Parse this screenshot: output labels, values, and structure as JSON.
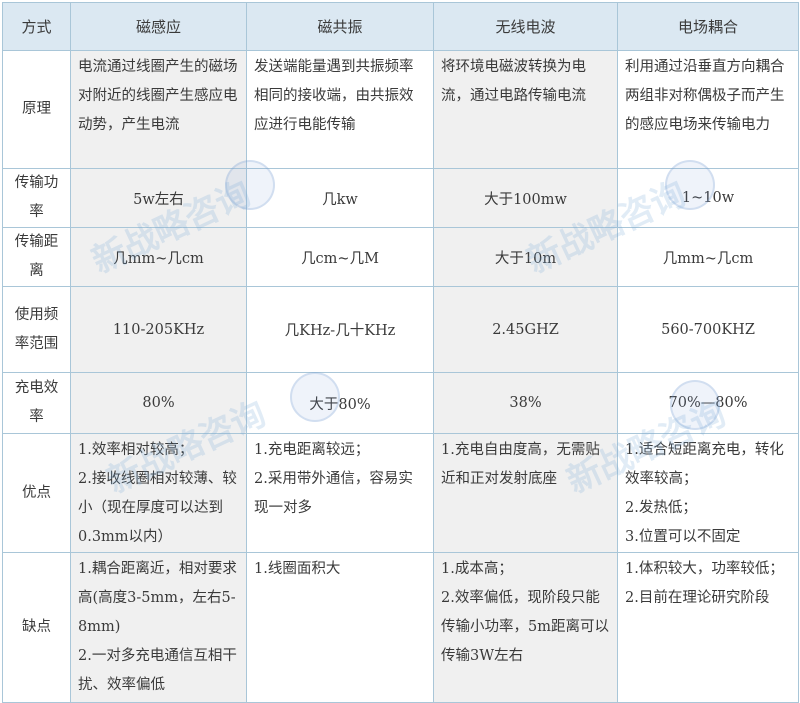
{
  "headers": [
    "方式",
    "磁感应",
    "磁共振",
    "无线电波",
    "电场耦合"
  ],
  "rows": [
    {
      "label": "原理",
      "cells": [
        "电流通过线圈产生的磁场对附近的线圈产生感应电动势，产生电流",
        "发送端能量遇到共振频率相同的接收端，由共振效应进行电能传输",
        "将环境电磁波转换为电流，通过电路传输电流",
        "利用通过沿垂直方向耦合两组非对称偶极子而产生的感应电场来传输电力"
      ]
    },
    {
      "label": "传输功率",
      "cells": [
        "5w左右",
        "几kw",
        "大于100mw",
        "1~10w"
      ]
    },
    {
      "label": "传输距离",
      "cells": [
        "几mm~几cm",
        "几cm~几M",
        "大于10m",
        "几mm~几cm"
      ]
    },
    {
      "label": "使用频率范围",
      "cells": [
        "110-205KHz",
        "几KHz-几十KHz",
        "2.45GHZ",
        "560-700KHZ"
      ]
    },
    {
      "label": "充电效率",
      "cells": [
        "80%",
        "大于80%",
        "38%",
        "70%—80%"
      ]
    },
    {
      "label": "优点",
      "cells": [
        "1.效率相对较高；\n2.接收线圈相对较薄、较小（现在厚度可以达到0.3mm以内）",
        "1.充电距离较远；\n2.采用带外通信，容易实现一对多",
        "1.充电自由度高，无需贴近和正对发射底座",
        "1.适合短距离充电，转化效率较高；\n2.发热低；\n3.位置可以不固定"
      ]
    },
    {
      "label": "缺点",
      "cells": [
        "1.耦合距离近，相对要求高(高度3-5mm，左右5-8mm)\n2.一对多充电通信互相干扰、效率偏低",
        "1.线圈面积大",
        "1.成本高；\n2.效率偏低，现阶段只能传输小功率，5m距离可以传输3W左右",
        "1.体积较大，功率较低；\n2.目前在理论研究阶段"
      ]
    }
  ],
  "watermark": "新战略咨询",
  "colors": {
    "header_bg": "#dbe8f2",
    "shaded_col": "#f0f0f0",
    "border": "#a9c6d8"
  }
}
